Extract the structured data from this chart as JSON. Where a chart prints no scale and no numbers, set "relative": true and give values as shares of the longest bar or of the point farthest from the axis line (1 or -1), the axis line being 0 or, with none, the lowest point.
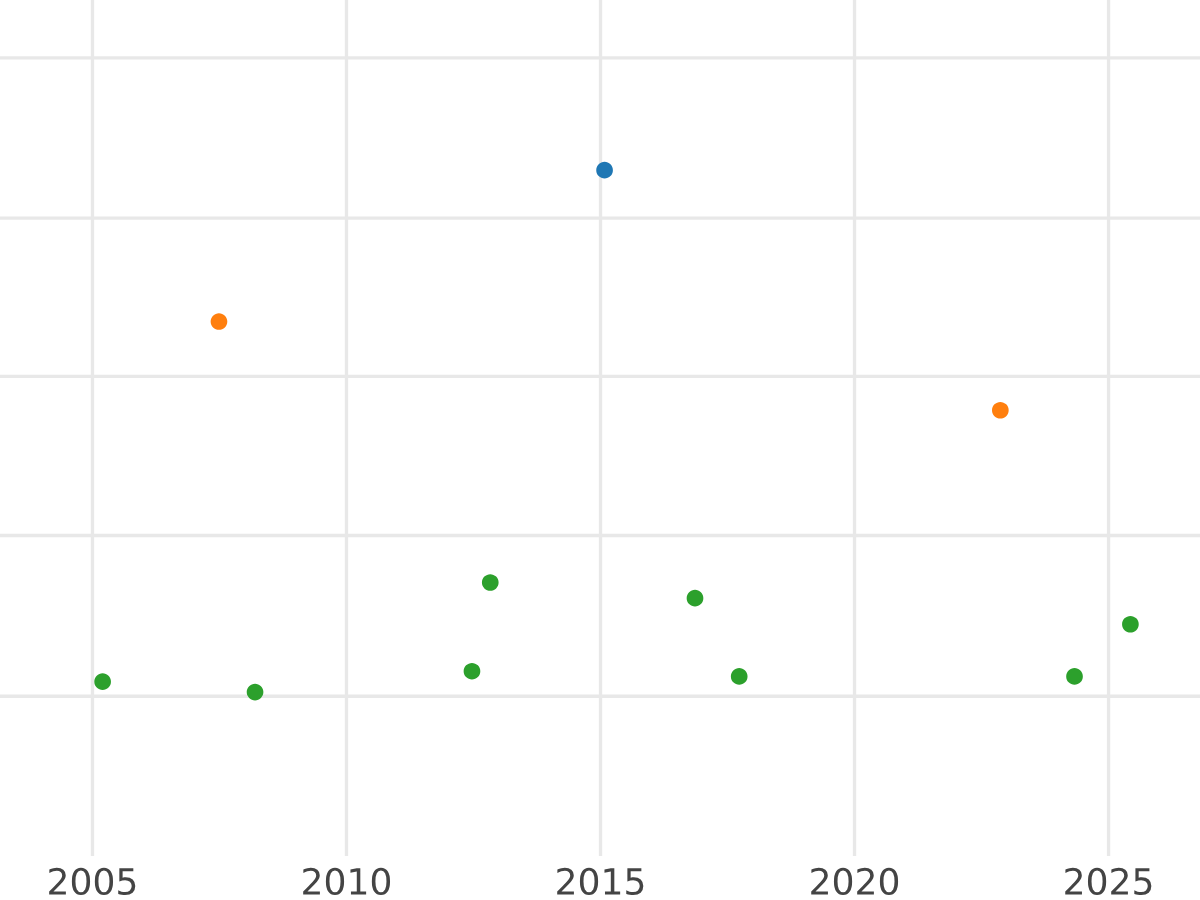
{
  "chart_data": {
    "type": "scatter",
    "relative": true,
    "grid": true,
    "marker": "circle",
    "xlim": [
      2003.18,
      2026.8
    ],
    "xticks": [
      2005,
      2010,
      2015,
      2020,
      2025
    ],
    "series": [
      {
        "color": "#1f77b4",
        "x": [
          2015.08
        ],
        "values": [
          1
        ]
      },
      {
        "color": "#ff7f0e",
        "x": [
          2007.49,
          2022.87
        ],
        "values": [
          0.71,
          0.54
        ]
      },
      {
        "color": "#2ca02c",
        "x": [
          2005.2,
          2008.2,
          2012.47,
          2012.83,
          2016.86,
          2017.73,
          2024.33,
          2025.43
        ],
        "values": [
          0.02,
          0,
          0.04,
          0.21,
          0.18,
          0.03,
          0.03,
          0.13
        ]
      }
    ]
  }
}
